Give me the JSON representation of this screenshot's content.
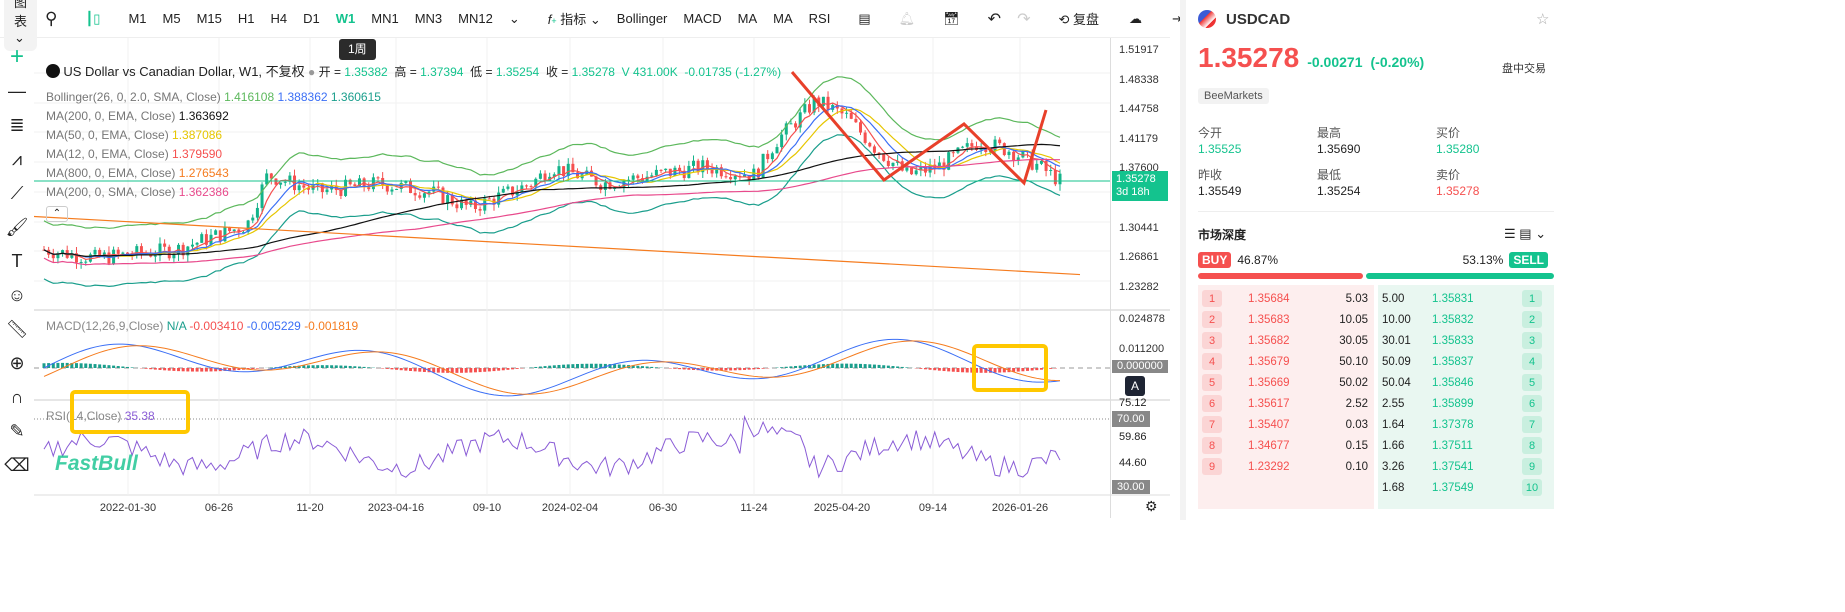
{
  "toolbar": {
    "chart_menu": "图表",
    "timeframes": [
      "M1",
      "M5",
      "M15",
      "H1",
      "H4",
      "D1",
      "W1",
      "MN1",
      "MN3",
      "MN12"
    ],
    "active_timeframe": "W1",
    "indicators_label": "指标",
    "indicator_shortcuts": [
      "Bollinger",
      "MACD",
      "MA",
      "MA",
      "RSI"
    ],
    "replay_label": "复盘",
    "tooltip": "1周"
  },
  "legend": {
    "title": "US Dollar vs Canadian Dollar, W1, 不复权",
    "open_label": "开",
    "open_value": "1.35382",
    "high_label": "高",
    "high_value": "1.37394",
    "low_label": "低",
    "low_value": "1.35254",
    "close_label": "收",
    "close_value": "1.35278",
    "volume": "V 431.00K",
    "change": "-0.01735 (-1.27%)",
    "indicators": [
      {
        "name": "Bollinger(26, 0, 2.0, SMA, Close)",
        "values": [
          "1.416108",
          "1.388362",
          "1.360615"
        ],
        "colors": [
          "#5cb85c",
          "#3b6ff5",
          "#1a9e8c"
        ]
      },
      {
        "name": "MA(200, 0, EMA, Close)",
        "values": [
          "1.363692"
        ],
        "colors": [
          "#111111"
        ]
      },
      {
        "name": "MA(50, 0, EMA, Close)",
        "values": [
          "1.387086"
        ],
        "colors": [
          "#f5d800"
        ]
      },
      {
        "name": "MA(12, 0, EMA, Close)",
        "values": [
          "1.379590"
        ],
        "colors": [
          "#f5504f"
        ]
      },
      {
        "name": "MA(800, 0, EMA, Close)",
        "values": [
          "1.276543"
        ],
        "colors": [
          "#f57c1f"
        ]
      },
      {
        "name": "MA(200, 0, SMA, Close)",
        "values": [
          "1.362386"
        ],
        "colors": [
          "#e84a8c"
        ]
      }
    ]
  },
  "macd": {
    "name": "MACD(12,26,9,Close)",
    "na": "N/A",
    "hist": "-0.003410",
    "macd": "-0.005229",
    "signal": "-0.001819"
  },
  "rsi": {
    "name": "RSI(14,Close)",
    "value": "35.38"
  },
  "price_axis": [
    "1.51917",
    "1.48338",
    "1.44758",
    "1.41179",
    "1.37600",
    "1.30441",
    "1.26861",
    "1.23282"
  ],
  "current_price_tag": "1.35278",
  "countdown": "3d 18h",
  "macd_axis": [
    "0.024878",
    "0.011200",
    "0.000000"
  ],
  "rsi_axis": [
    "75.12",
    "70.00",
    "59.86",
    "44.60",
    "30.00"
  ],
  "auto_scale": "A",
  "time_axis": [
    "2022-01-30",
    "06-26",
    "11-20",
    "2023-04-16",
    "09-10",
    "2024-02-04",
    "06-30",
    "11-24",
    "2025-04-20",
    "09-14",
    "2026-01-26"
  ],
  "watermark": "FastBull",
  "panel": {
    "symbol": "USDCAD",
    "price": "1.35278",
    "change": "-0.00271",
    "change_pct": "(-0.20%)",
    "session": "盘中交易",
    "broker": "BeeMarkets",
    "stats": [
      {
        "label": "今开",
        "value": "1.35525",
        "color": "green"
      },
      {
        "label": "最高",
        "value": "1.35690",
        "color": "dark"
      },
      {
        "label": "买价",
        "value": "1.35280",
        "color": "green"
      },
      {
        "label": "昨收",
        "value": "1.35549",
        "color": "dark"
      },
      {
        "label": "最低",
        "value": "1.35254",
        "color": "dark"
      },
      {
        "label": "卖价",
        "value": "1.35278",
        "color": "red"
      }
    ],
    "depth_title": "市场深度",
    "buy_label": "BUY",
    "buy_pct": "46.87%",
    "sell_label": "SELL",
    "sell_pct": "53.13%",
    "buy_fraction": 0.4687,
    "bids": [
      [
        "1",
        "1.35684",
        "5.03"
      ],
      [
        "2",
        "1.35683",
        "10.05"
      ],
      [
        "3",
        "1.35682",
        "30.05"
      ],
      [
        "4",
        "1.35679",
        "50.10"
      ],
      [
        "5",
        "1.35669",
        "50.02"
      ],
      [
        "6",
        "1.35617",
        "2.52"
      ],
      [
        "7",
        "1.35407",
        "0.03"
      ],
      [
        "8",
        "1.34677",
        "0.15"
      ],
      [
        "9",
        "1.23292",
        "0.10"
      ]
    ],
    "asks": [
      [
        "5.00",
        "1.35831",
        "1"
      ],
      [
        "10.00",
        "1.35832",
        "2"
      ],
      [
        "30.01",
        "1.35833",
        "3"
      ],
      [
        "50.09",
        "1.35837",
        "4"
      ],
      [
        "50.04",
        "1.35846",
        "5"
      ],
      [
        "2.55",
        "1.35899",
        "6"
      ],
      [
        "1.64",
        "1.37378",
        "7"
      ],
      [
        "1.66",
        "1.37511",
        "8"
      ],
      [
        "3.26",
        "1.37541",
        "9"
      ],
      [
        "1.68",
        "1.37549",
        "10"
      ]
    ]
  }
}
